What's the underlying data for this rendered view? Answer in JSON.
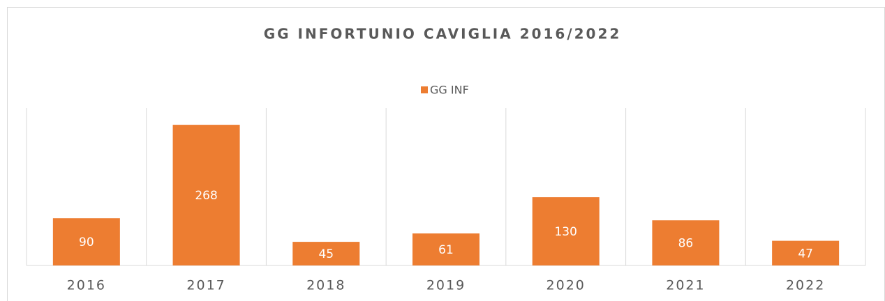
{
  "chart_data": {
    "type": "bar",
    "title": "GG INFORTUNIO CAVIGLIA 2016/2022",
    "categories": [
      "2016",
      "2017",
      "2018",
      "2019",
      "2020",
      "2021",
      "2022"
    ],
    "series": [
      {
        "name": "GG INF",
        "color": "#ed7d31",
        "values": [
          90,
          268,
          45,
          61,
          130,
          86,
          47
        ]
      }
    ],
    "ylim": [
      0,
      300
    ],
    "legend": "top",
    "grid": true
  }
}
